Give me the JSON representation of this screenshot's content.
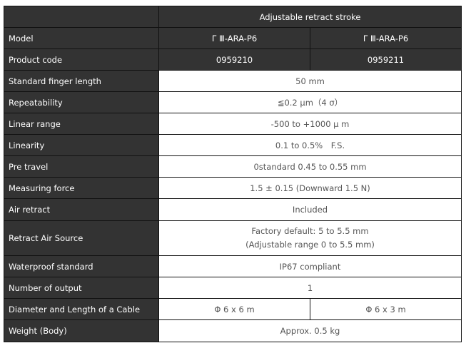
{
  "header": {
    "title": "Adjustable retract stroke"
  },
  "rows": [
    {
      "label": "Model",
      "values": [
        "Γ Ⅲ-ARA-P6",
        "Γ Ⅲ-ARA-P6"
      ]
    },
    {
      "label": "Product code",
      "values": [
        "0959210",
        "0959211"
      ]
    },
    {
      "label": "Standard finger length",
      "value": "50 mm"
    },
    {
      "label": "Repeatability",
      "value": "≦0.2 μm（4 σ）"
    },
    {
      "label": "Linear range",
      "value": "-500 to +1000 μ m"
    },
    {
      "label": "Linearity",
      "value": "0.1 to 0.5%　F.S."
    },
    {
      "label": "Pre travel",
      "value": "0standard 0.45 to 0.55 mm"
    },
    {
      "label": "Measuring force",
      "value": "1.5 ± 0.15 (Downward 1.5 N)"
    },
    {
      "label": "Air retract",
      "value": "Included"
    },
    {
      "label": "Retract Air Source",
      "value_line1": "Factory default: 5 to 5.5 mm",
      "value_line2": "(Adjustable range 0 to 5.5 mm)"
    },
    {
      "label": "Waterproof standard",
      "value": "IP67 compliant"
    },
    {
      "label": "Number of output",
      "value": "1"
    },
    {
      "label": "Diameter and Length of a Cable",
      "values": [
        "Φ 6 x 6 m",
        "Φ 6 x 3 m"
      ]
    },
    {
      "label": "Weight (Body)",
      "value": "Approx. 0.5 kg"
    }
  ]
}
